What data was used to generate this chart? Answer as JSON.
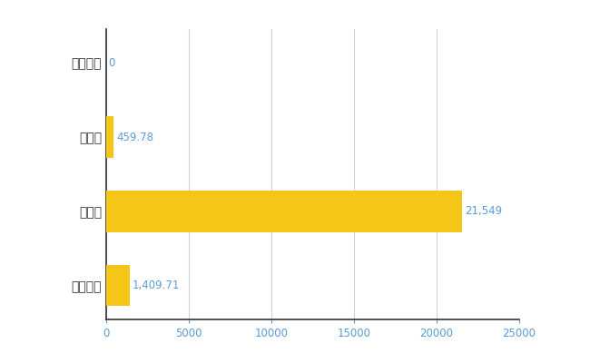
{
  "categories": [
    "全国平均",
    "県最大",
    "県平均",
    "西興部村"
  ],
  "values": [
    1409.71,
    21549,
    459.78,
    0
  ],
  "bar_color": "#F5C518",
  "value_labels": [
    "1,409.71",
    "21,549",
    "459.78",
    "0"
  ],
  "xlim": [
    0,
    25000
  ],
  "xticks": [
    0,
    5000,
    10000,
    15000,
    20000,
    25000
  ],
  "xtick_labels": [
    "0",
    "5000",
    "10000",
    "15000",
    "20000",
    "25000"
  ],
  "background_color": "#ffffff",
  "grid_color": "#d0d0d0",
  "label_color": "#5b9bd5",
  "bar_height": 0.55,
  "figsize": [
    6.5,
    4.0
  ],
  "dpi": 100
}
